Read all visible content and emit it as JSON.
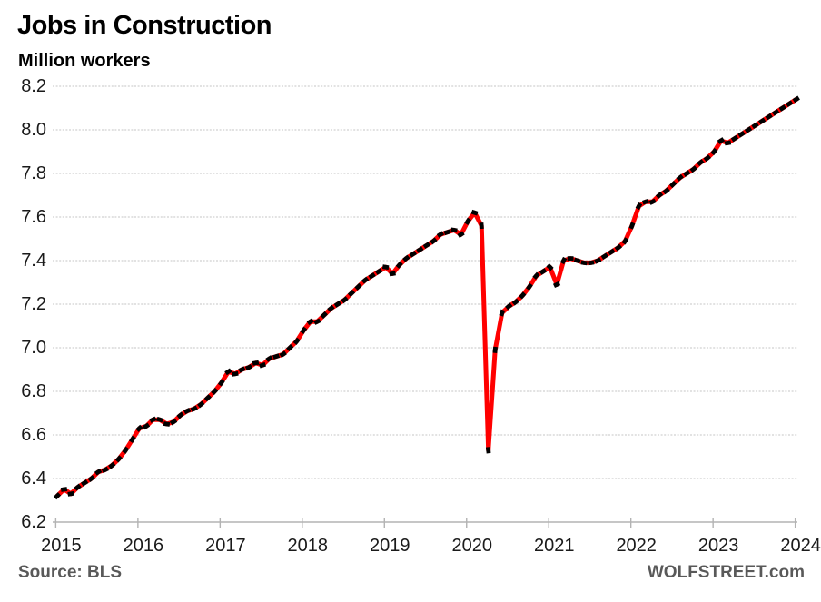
{
  "header": {
    "title": "Jobs in Construction",
    "subtitle": "Million workers"
  },
  "footer": {
    "source": "Source: BLS",
    "watermark": "WOLFSTREET.com"
  },
  "chart_data": {
    "type": "line",
    "title": "Jobs in Construction",
    "ylabel": "Million workers",
    "xlabel": "",
    "freq": "monthly",
    "x_start": "2015-01",
    "x_end": "2024-01",
    "x_tick_labels": [
      "2015",
      "2016",
      "2017",
      "2018",
      "2019",
      "2020",
      "2021",
      "2022",
      "2023",
      "2024"
    ],
    "y_ticks": [
      6.2,
      6.4,
      6.6,
      6.8,
      7.0,
      7.2,
      7.4,
      7.6,
      7.8,
      8.0,
      8.2
    ],
    "ylim": [
      6.2,
      8.2
    ],
    "grid": "horizontal-dotted",
    "legend": "none",
    "line_color": "#ff0000",
    "marker_color": "#000000",
    "grid_color": "#c6c6c6",
    "axis_color": "#b3b3b3",
    "tick_label_color": "#1a1a1a",
    "series": [
      {
        "name": "Construction jobs, million workers",
        "values": [
          6.32,
          6.35,
          6.33,
          6.36,
          6.38,
          6.4,
          6.43,
          6.44,
          6.46,
          6.49,
          6.53,
          6.58,
          6.63,
          6.64,
          6.67,
          6.67,
          6.65,
          6.66,
          6.69,
          6.71,
          6.72,
          6.74,
          6.77,
          6.8,
          6.84,
          6.89,
          6.88,
          6.9,
          6.91,
          6.93,
          6.92,
          6.95,
          6.96,
          6.97,
          7.0,
          7.03,
          7.08,
          7.12,
          7.12,
          7.15,
          7.18,
          7.2,
          7.22,
          7.25,
          7.28,
          7.31,
          7.33,
          7.35,
          7.37,
          7.34,
          7.38,
          7.41,
          7.43,
          7.45,
          7.47,
          7.49,
          7.52,
          7.53,
          7.54,
          7.52,
          7.58,
          7.62,
          7.56,
          6.53,
          6.99,
          7.16,
          7.19,
          7.21,
          7.24,
          7.28,
          7.33,
          7.35,
          7.37,
          7.29,
          7.4,
          7.41,
          7.4,
          7.39,
          7.39,
          7.4,
          7.42,
          7.44,
          7.46,
          7.49,
          7.56,
          7.65,
          7.67,
          7.67,
          7.7,
          7.72,
          7.75,
          7.78,
          7.8,
          7.82,
          7.85,
          7.87,
          7.9,
          7.95,
          7.94,
          7.96,
          7.98,
          8.0,
          8.02,
          8.04,
          8.06,
          8.08,
          8.1,
          8.12,
          8.14
        ]
      }
    ]
  }
}
